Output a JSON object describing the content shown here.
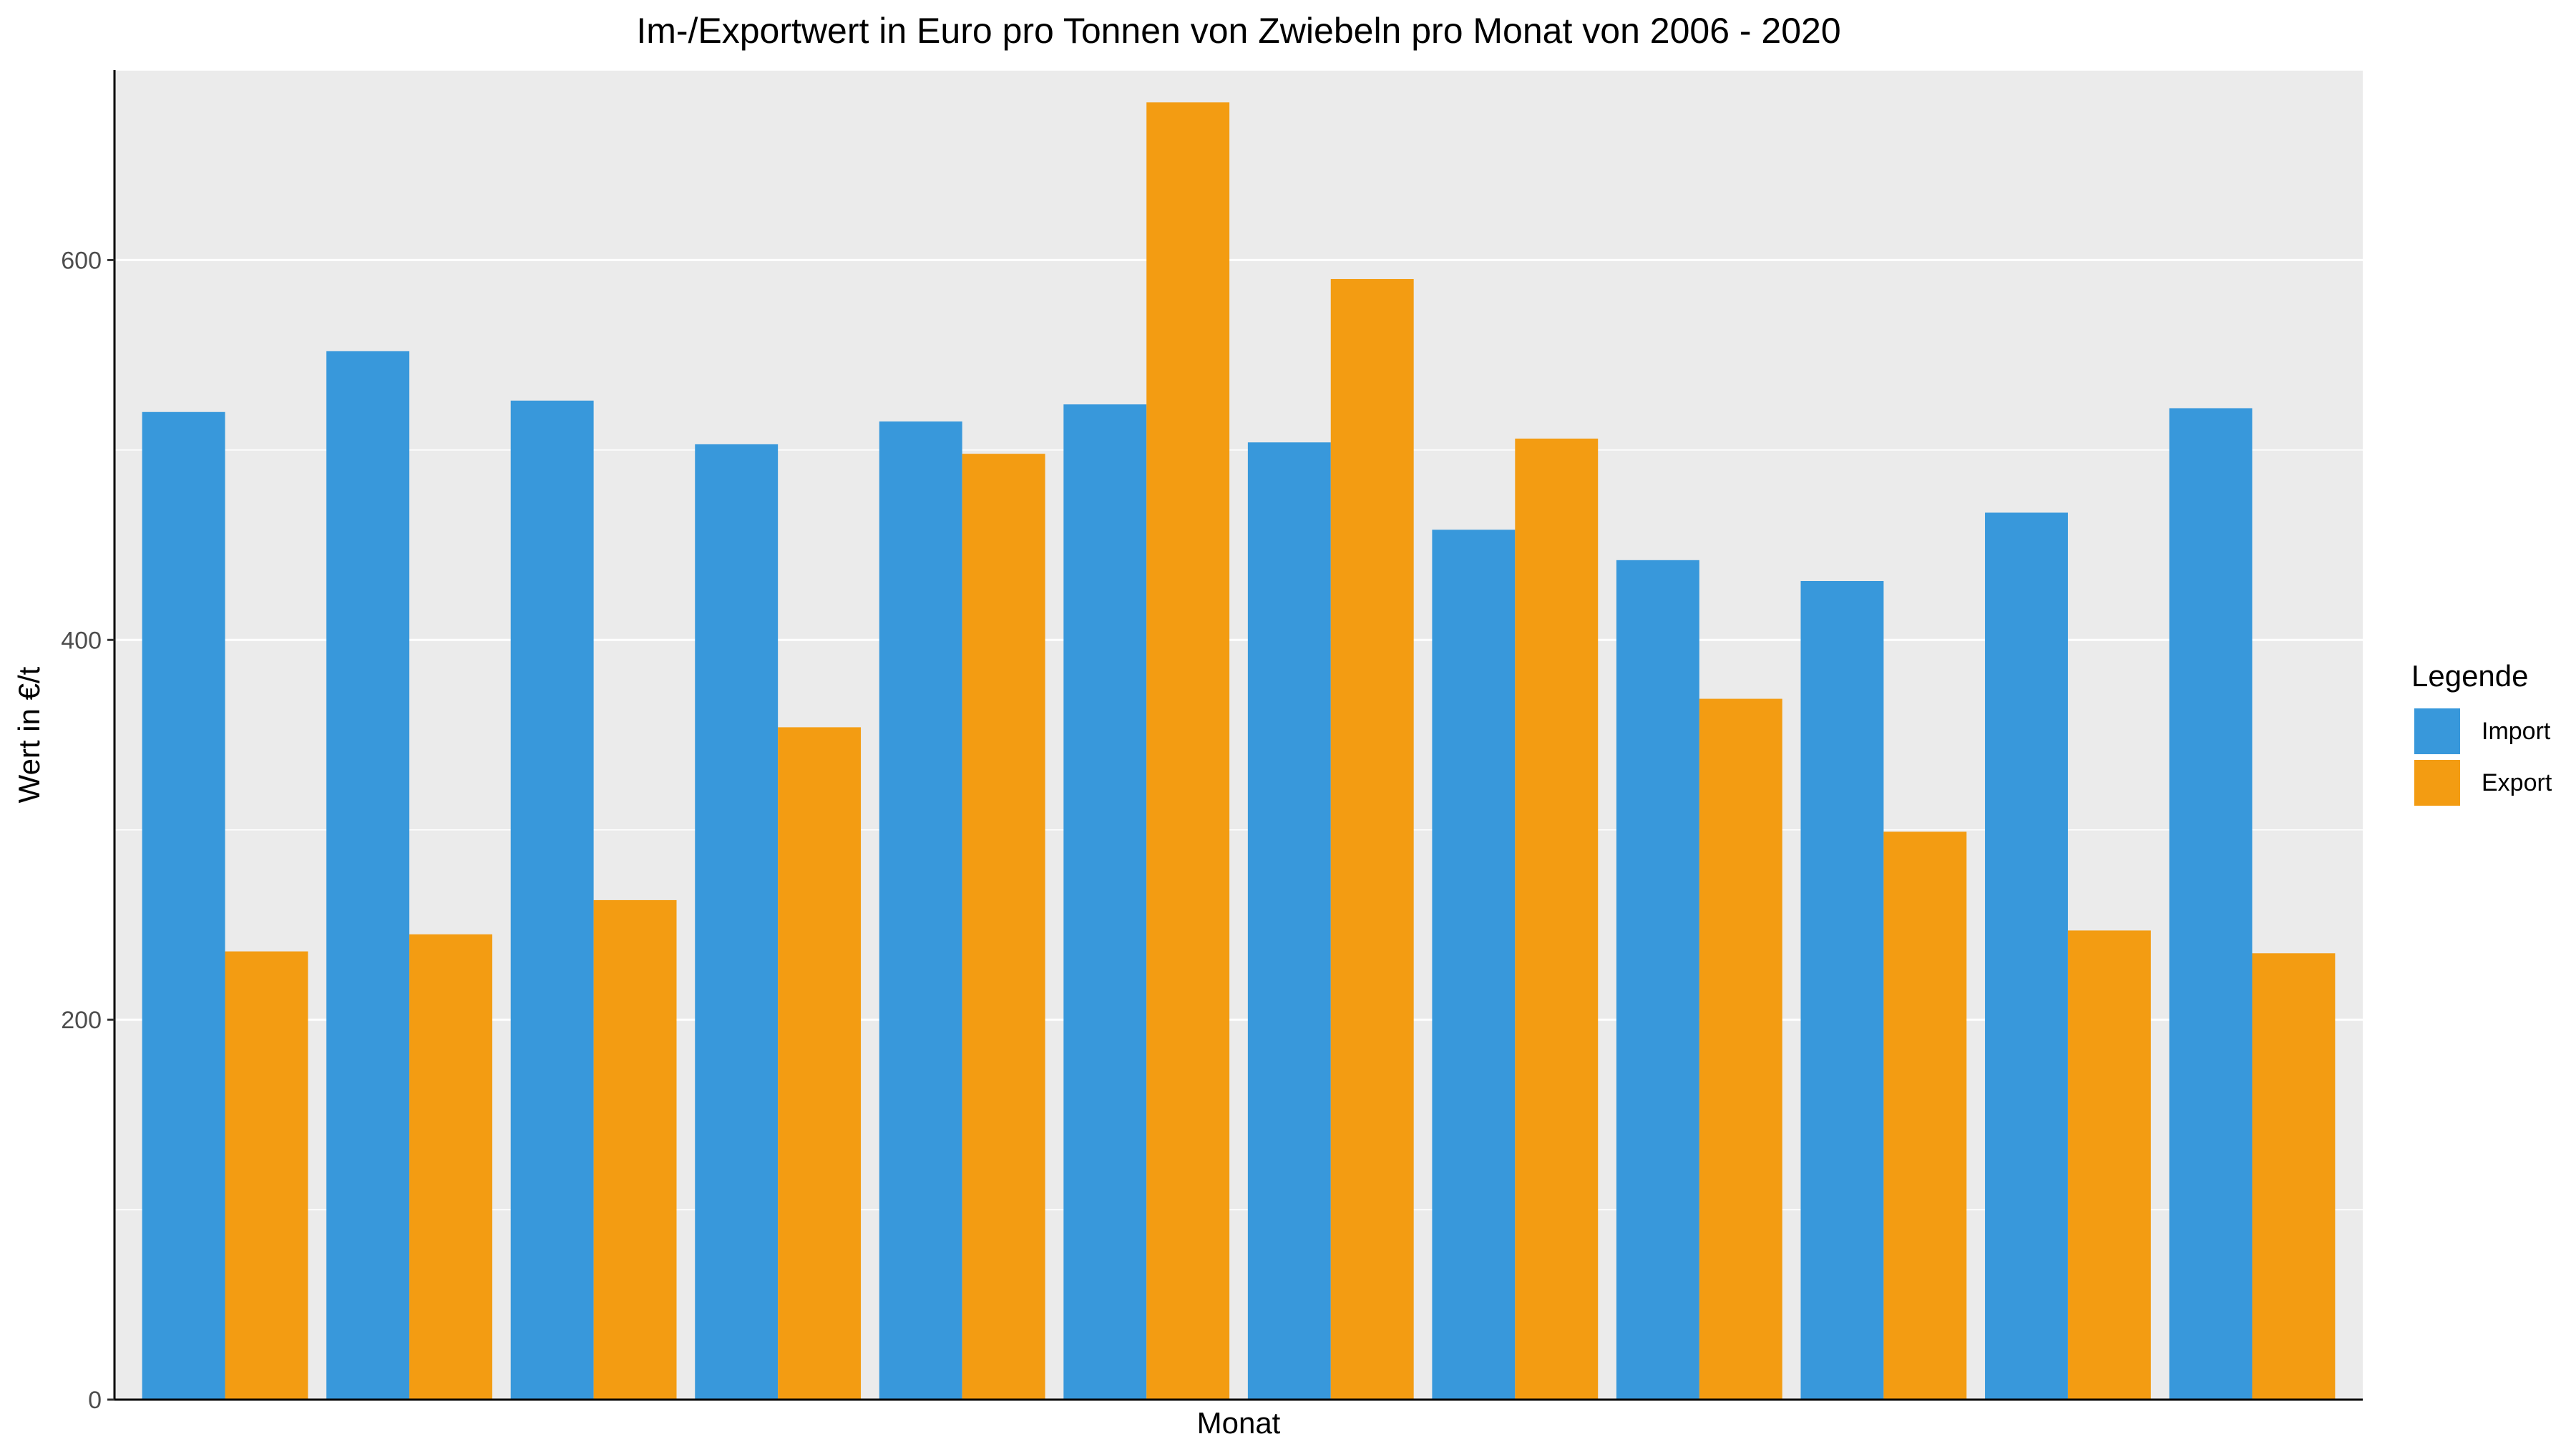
{
  "chart_data": {
    "type": "bar",
    "title": "Im-/Exportwert in Euro pro Tonnen von Zwiebeln pro Monat von 2006 - 2020",
    "xlabel": "Monat",
    "ylabel": "Wert in €/t",
    "ylim": [
      0,
      700
    ],
    "yticks": [
      0,
      200,
      400,
      600
    ],
    "grid": true,
    "legend": {
      "title": "Legende",
      "position": "right"
    },
    "categories": [
      "",
      "",
      "",
      "",
      "",
      "",
      "",
      "",
      "",
      "",
      "",
      ""
    ],
    "series": [
      {
        "name": "Import",
        "color": "#3898db",
        "values": [
          520,
          552,
          526,
          503,
          515,
          524,
          504,
          458,
          442,
          431,
          467,
          522
        ]
      },
      {
        "name": "Export",
        "color": "#f39c12",
        "values": [
          236,
          245,
          263,
          354,
          498,
          683,
          590,
          506,
          369,
          299,
          247,
          235
        ]
      }
    ]
  }
}
